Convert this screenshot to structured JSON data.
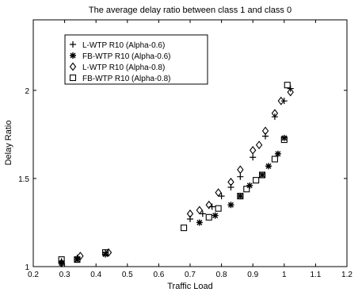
{
  "chart_data": {
    "type": "scatter",
    "title": "The average delay ratio between class 1 and class 0",
    "xlabel": "Traffic Load",
    "ylabel": "Delay Ratio",
    "xlim": [
      0.2,
      1.2
    ],
    "ylim": [
      1.0,
      2.4
    ],
    "xticks": [
      0.2,
      0.3,
      0.4,
      0.5,
      0.6,
      0.7,
      0.8,
      0.9,
      1.0,
      1.1,
      1.2
    ],
    "xtick_labels": [
      "0.2",
      "0.3",
      "0.4",
      "0.5",
      "0.6",
      "0.7",
      "0.8",
      "0.9",
      "1",
      "1.1",
      "1.2"
    ],
    "yticks": [
      1.0,
      1.5,
      2.0
    ],
    "ytick_labels": [
      "1",
      "1.5",
      "2"
    ],
    "grid": false,
    "legend_position": "top-left",
    "series": [
      {
        "name": "L-WTP R10 (Alpha-0.6)",
        "marker": "plus",
        "color": "#000000",
        "points": [
          [
            0.29,
            1.03
          ],
          [
            0.34,
            1.05
          ],
          [
            0.43,
            1.08
          ],
          [
            0.7,
            1.27
          ],
          [
            0.74,
            1.3
          ],
          [
            0.77,
            1.34
          ],
          [
            0.8,
            1.4
          ],
          [
            0.83,
            1.45
          ],
          [
            0.86,
            1.51
          ],
          [
            0.9,
            1.62
          ],
          [
            0.94,
            1.74
          ],
          [
            0.97,
            1.85
          ],
          [
            1.0,
            1.94
          ],
          [
            1.02,
            2.01
          ]
        ]
      },
      {
        "name": "FB-WTP R10 (Alpha-0.6)",
        "marker": "asterisk",
        "color": "#000000",
        "points": [
          [
            0.29,
            1.02
          ],
          [
            0.34,
            1.04
          ],
          [
            0.43,
            1.07
          ],
          [
            0.73,
            1.25
          ],
          [
            0.78,
            1.29
          ],
          [
            0.83,
            1.35
          ],
          [
            0.86,
            1.4
          ],
          [
            0.89,
            1.46
          ],
          [
            0.93,
            1.52
          ],
          [
            0.95,
            1.57
          ],
          [
            0.98,
            1.64
          ],
          [
            1.0,
            1.73
          ]
        ]
      },
      {
        "name": "L-WTP R10 (Alpha-0.8)",
        "marker": "diamond",
        "color": "#000000",
        "points": [
          [
            0.29,
            1.02
          ],
          [
            0.35,
            1.06
          ],
          [
            0.44,
            1.08
          ],
          [
            0.7,
            1.3
          ],
          [
            0.73,
            1.32
          ],
          [
            0.76,
            1.35
          ],
          [
            0.79,
            1.42
          ],
          [
            0.83,
            1.48
          ],
          [
            0.86,
            1.55
          ],
          [
            0.9,
            1.66
          ],
          [
            0.92,
            1.69
          ],
          [
            0.94,
            1.77
          ],
          [
            0.97,
            1.87
          ],
          [
            0.99,
            1.94
          ],
          [
            1.02,
            1.99
          ]
        ]
      },
      {
        "name": "FB-WTP R10 (Alpha-0.8)",
        "marker": "square",
        "color": "#000000",
        "points": [
          [
            0.29,
            1.04
          ],
          [
            0.34,
            1.04
          ],
          [
            0.43,
            1.08
          ],
          [
            0.68,
            1.22
          ],
          [
            0.76,
            1.28
          ],
          [
            0.79,
            1.33
          ],
          [
            0.86,
            1.4
          ],
          [
            0.88,
            1.44
          ],
          [
            0.91,
            1.49
          ],
          [
            0.93,
            1.52
          ],
          [
            0.97,
            1.61
          ],
          [
            1.0,
            1.72
          ],
          [
            1.01,
            2.03
          ]
        ]
      }
    ]
  }
}
